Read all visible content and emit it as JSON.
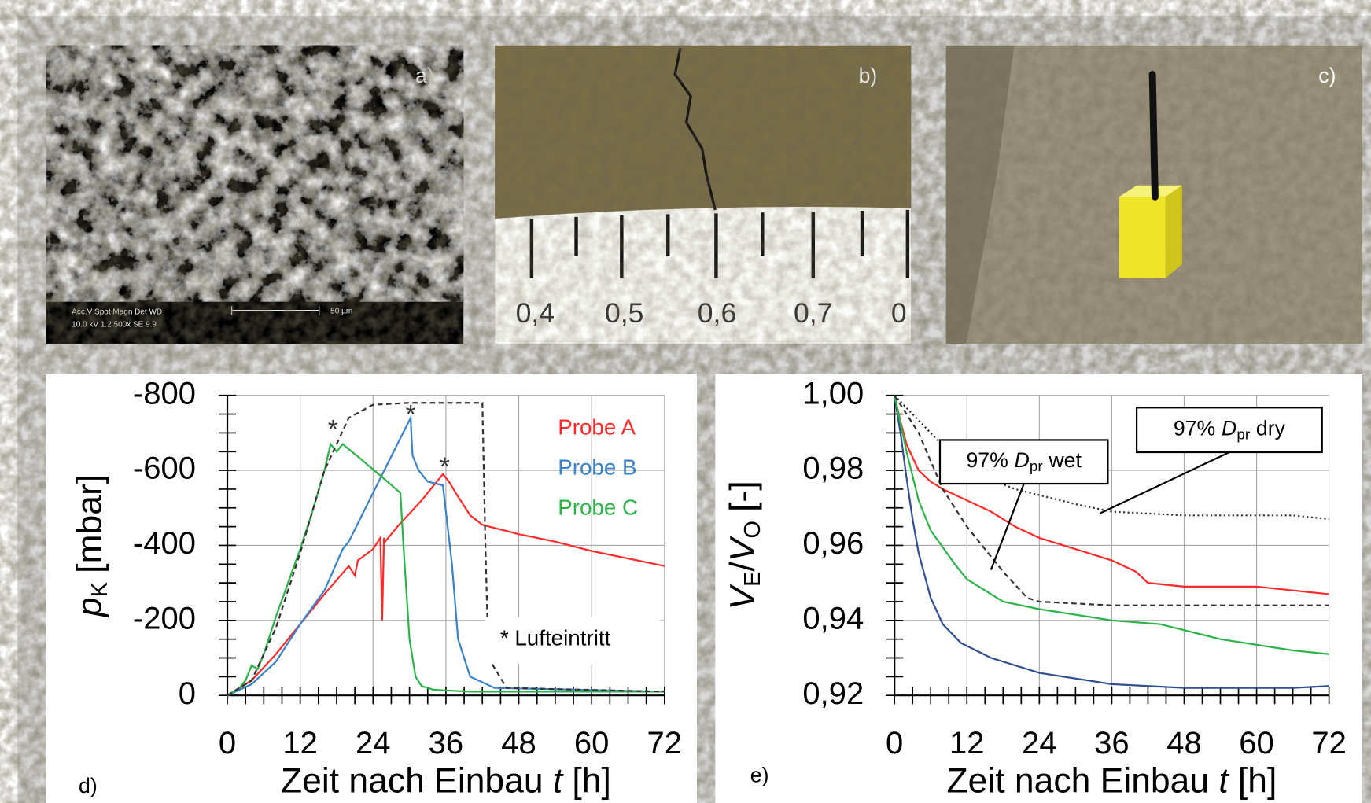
{
  "panels": {
    "a": {
      "label": "a)",
      "sem_info": [
        "Acc.V  Spot Magn   Det  WD",
        "10.0 kV 1.2  500x    SE   9.9"
      ],
      "scale_bar": "50 µm"
    },
    "b": {
      "label": "b)",
      "ruler": [
        "0,4",
        "0,5",
        "0,6",
        "0,7",
        "0"
      ]
    },
    "c": {
      "label": "c)"
    }
  },
  "chart_data": [
    {
      "type": "line",
      "panel_label": "d)",
      "x_label": [
        "Zeit nach Einbau",
        "t",
        "[h]"
      ],
      "y_label": [
        "p",
        "K",
        "[mbar]"
      ],
      "xlim": [
        0,
        72
      ],
      "xticks": [
        0,
        12,
        24,
        36,
        48,
        60,
        72
      ],
      "ylim": [
        0,
        -800
      ],
      "yticks": [
        0,
        -200,
        -400,
        -600,
        -800
      ],
      "grid": true,
      "legend": "upper right",
      "series": [
        {
          "name": "Probe A",
          "color": "#ff2a2a",
          "dash": "solid",
          "x": [
            0,
            4,
            8,
            12,
            16,
            20,
            21,
            21.5,
            24,
            25.2,
            25.5,
            25.8,
            26,
            28,
            32,
            35.5,
            36.5,
            38,
            40,
            42,
            48,
            54,
            60,
            66,
            72
          ],
          "values": [
            0,
            -40,
            -110,
            -190,
            -270,
            -345,
            -320,
            -360,
            -390,
            -420,
            -200,
            -420,
            -410,
            -450,
            -520,
            -590,
            -570,
            -530,
            -480,
            -455,
            -430,
            -410,
            -385,
            -365,
            -345
          ]
        },
        {
          "name": "Probe B",
          "color": "#3a82c8",
          "dash": "solid",
          "x": [
            0,
            4,
            8,
            12,
            16,
            19,
            20,
            24,
            28,
            30.2,
            30.3,
            30.5,
            31.5,
            33,
            35.5,
            36,
            37,
            38,
            40,
            44,
            72
          ],
          "values": [
            0,
            -30,
            -90,
            -190,
            -280,
            -390,
            -410,
            -540,
            -670,
            -740,
            -700,
            -640,
            -600,
            -570,
            -560,
            -490,
            -350,
            -150,
            -50,
            -20,
            -10
          ]
        },
        {
          "name": "Probe C",
          "color": "#2db34a",
          "dash": "solid",
          "x": [
            0,
            2,
            3,
            4,
            5,
            6,
            8,
            10,
            12,
            14,
            16,
            17,
            18,
            19,
            22,
            26,
            28.5,
            29,
            30,
            31,
            32,
            34,
            40,
            72
          ],
          "values": [
            0,
            -20,
            -40,
            -80,
            -70,
            -110,
            -210,
            -300,
            -390,
            -490,
            -600,
            -670,
            -650,
            -670,
            -630,
            -575,
            -540,
            -400,
            -150,
            -50,
            -25,
            -15,
            -10,
            -10
          ]
        },
        {
          "color": "#333333",
          "dash": "dashed",
          "x": [
            0,
            4,
            8,
            12,
            16,
            20,
            24,
            30,
            42,
            42.5,
            43,
            46,
            72
          ],
          "values": [
            0,
            -40,
            -180,
            -380,
            -600,
            -740,
            -775,
            -780,
            -780,
            -400,
            -100,
            -20,
            -10
          ]
        }
      ],
      "annotations": [
        {
          "text": "*",
          "x": 17.4,
          "y": -705
        },
        {
          "text": "*",
          "x": 30.2,
          "y": -745
        },
        {
          "text": "*",
          "x": 35.8,
          "y": -605
        }
      ],
      "note": "* Lufteintritt"
    },
    {
      "type": "line",
      "panel_label": "e)",
      "x_label": [
        "Zeit nach Einbau",
        "t",
        "[h]"
      ],
      "y_label": [
        "V",
        "E",
        "/",
        "V",
        "O",
        "[-]"
      ],
      "xlim": [
        0,
        72
      ],
      "xticks": [
        0,
        12,
        24,
        36,
        48,
        60,
        72
      ],
      "ylim": [
        0.92,
        1.0
      ],
      "yticks": [
        {
          "value": 0.92,
          "label": "0,92"
        },
        {
          "value": 0.94,
          "label": "0,94"
        },
        {
          "value": 0.96,
          "label": "0,96"
        },
        {
          "value": 0.98,
          "label": "0,98"
        },
        {
          "value": 1.0,
          "label": "1,00"
        }
      ],
      "grid": true,
      "series": [
        {
          "color": "#ff2a2a",
          "dash": "solid",
          "x": [
            0,
            1,
            2,
            4,
            6,
            8,
            12,
            16,
            20,
            24,
            30,
            36,
            40,
            42,
            48,
            60,
            66,
            72
          ],
          "values": [
            1.0,
            0.993,
            0.987,
            0.98,
            0.977,
            0.975,
            0.972,
            0.969,
            0.965,
            0.962,
            0.959,
            0.956,
            0.953,
            0.95,
            0.949,
            0.949,
            0.948,
            0.947
          ]
        },
        {
          "color": "#2f4f8f",
          "dash": "solid",
          "x": [
            0,
            1,
            2,
            3,
            4,
            6,
            8,
            11,
            16,
            24,
            36,
            48,
            66,
            72
          ],
          "values": [
            1.0,
            0.99,
            0.978,
            0.967,
            0.958,
            0.946,
            0.939,
            0.934,
            0.93,
            0.926,
            0.923,
            0.922,
            0.922,
            0.9225
          ]
        },
        {
          "color": "#2db34a",
          "dash": "solid",
          "x": [
            0,
            2,
            4,
            6,
            10,
            12,
            18,
            24,
            36,
            44,
            54,
            66,
            72
          ],
          "values": [
            1.0,
            0.985,
            0.972,
            0.964,
            0.955,
            0.951,
            0.945,
            0.943,
            0.94,
            0.939,
            0.935,
            0.932,
            0.931
          ]
        },
        {
          "color": "#333333",
          "dash": "dashed",
          "x": [
            0,
            4,
            8,
            12,
            18,
            22,
            24,
            36,
            72
          ],
          "values": [
            1.0,
            0.99,
            0.975,
            0.965,
            0.953,
            0.946,
            0.945,
            0.944,
            0.944
          ]
        },
        {
          "color": "#333333",
          "dash": "dotted",
          "x": [
            0,
            6,
            12,
            20,
            30,
            36,
            48,
            66,
            72
          ],
          "values": [
            1.0,
            0.99,
            0.98,
            0.975,
            0.971,
            0.969,
            0.968,
            0.968,
            0.967
          ]
        }
      ],
      "annotations": [
        {
          "text": [
            "97%",
            "D",
            "pr",
            "wet"
          ],
          "x": 16,
          "y": 0.9535
        },
        {
          "text": [
            "97%",
            "D",
            "pr",
            "dry"
          ],
          "x": 34,
          "y": 0.9685
        }
      ]
    }
  ]
}
